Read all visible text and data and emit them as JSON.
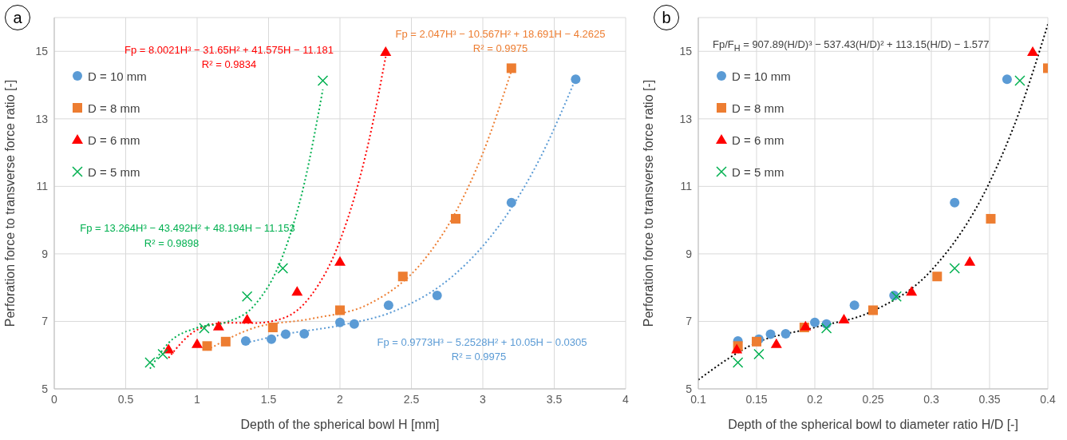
{
  "chart_data": [
    {
      "type": "scatter",
      "xlabel": "Depth of the spherical bowl H [mm]",
      "ylabel": "Perforation force to transverse force ratio [-]",
      "xlim": [
        0,
        4
      ],
      "xticks": [
        0,
        0.5,
        1,
        1.5,
        2,
        2.5,
        3,
        3.5,
        4
      ],
      "ylim": [
        5,
        16
      ],
      "yticks": [
        5,
        7,
        9,
        11,
        13,
        15
      ],
      "grid": true,
      "legend": "top left",
      "annotations": [
        "a",
        "Fp = 8.0021H³ − 31.65H² + 41.575H − 11.181",
        "R² = 0.9834",
        "Fp = 2.047H³ − 10.567H² + 18.691H − 4.2625",
        "R² = 0.9975",
        "Fp = 13.264H³ − 43.492H² + 48.194H − 11.153",
        "R² = 0.9898",
        "Fp = 0.9773H³ − 5.2528H² + 10.05H − 0.0305",
        "R² = 0.9975"
      ],
      "series": [
        {
          "name": "D = 10 mm",
          "type": "scatter",
          "marker": "circle",
          "color": "#5b9bd5",
          "x": [
            1.34,
            1.52,
            1.62,
            1.75,
            2.0,
            2.1,
            2.34,
            2.68,
            3.2,
            3.65
          ],
          "values": [
            6.42,
            6.47,
            6.62,
            6.63,
            6.97,
            6.92,
            7.48,
            7.77,
            10.52,
            14.17
          ]
        },
        {
          "name": "D = 8 mm",
          "type": "scatter",
          "marker": "square",
          "color": "#ed7d31",
          "x": [
            1.07,
            1.2,
            1.53,
            2.0,
            2.44,
            2.81,
            3.2
          ],
          "values": [
            6.27,
            6.4,
            6.82,
            7.33,
            8.33,
            10.04,
            14.5
          ]
        },
        {
          "name": "D = 6 mm",
          "type": "scatter",
          "marker": "triangle",
          "color": "#ff0000",
          "x": [
            0.8,
            1.0,
            1.15,
            1.35,
            1.7,
            2.0,
            2.32
          ],
          "values": [
            6.17,
            6.33,
            6.85,
            7.06,
            7.88,
            8.77,
            14.98
          ]
        },
        {
          "name": "D = 5 mm",
          "type": "scatter",
          "marker": "cross",
          "color": "#00b050",
          "x": [
            0.67,
            0.76,
            1.05,
            1.35,
            1.6,
            1.88
          ],
          "values": [
            5.78,
            6.03,
            6.8,
            7.74,
            8.57,
            14.13
          ]
        },
        {
          "type": "line",
          "line_style": "dotted",
          "color": "#ff0000",
          "x": [
            0.8,
            1.0,
            1.2,
            1.4,
            1.6,
            1.8,
            2.0,
            2.2,
            2.32
          ],
          "values": [
            5.92,
            6.75,
            6.96,
            6.95,
            7.09,
            7.78,
            9.39,
            12.3,
            14.84
          ]
        },
        {
          "type": "line",
          "line_style": "dotted",
          "color": "#ed7d31",
          "x": [
            1.07,
            1.4,
            1.8,
            2.2,
            2.6,
            2.8,
            3.0,
            3.2
          ],
          "values": [
            6.15,
            6.81,
            7.08,
            7.51,
            8.88,
            10.16,
            11.98,
            14.42
          ]
        },
        {
          "type": "line",
          "line_style": "dotted",
          "color": "#00b050",
          "x": [
            0.67,
            0.8,
            1.0,
            1.2,
            1.4,
            1.6,
            1.75,
            1.88
          ],
          "values": [
            5.6,
            6.36,
            6.81,
            6.97,
            7.47,
            8.95,
            11.08,
            13.87
          ]
        },
        {
          "type": "line",
          "line_style": "dotted",
          "color": "#5b9bd5",
          "x": [
            1.34,
            1.6,
            2.0,
            2.4,
            2.8,
            3.0,
            3.2,
            3.4,
            3.65
          ],
          "values": [
            6.36,
            6.61,
            6.88,
            7.34,
            8.38,
            9.23,
            10.36,
            11.83,
            14.19
          ]
        }
      ]
    },
    {
      "type": "scatter",
      "xlabel": "Depth of the spherical bowl to diameter ratio H/D [-]",
      "ylabel": "Perforation force to transverse force ratio [-]",
      "xlim": [
        0.1,
        0.4
      ],
      "xticks": [
        0.1,
        0.15,
        0.2,
        0.25,
        0.3,
        0.35,
        0.4
      ],
      "ylim": [
        5,
        16
      ],
      "yticks": [
        5,
        7,
        9,
        11,
        13,
        15
      ],
      "grid": true,
      "legend": "top left",
      "annotations": [
        "b",
        "Fp/F$_{H}$ = 907.89(H/D)³ − 537.43(H/D)² + 113.15(H/D) − 1.577"
      ],
      "series": [
        {
          "name": "D = 10 mm",
          "type": "scatter",
          "marker": "circle",
          "color": "#5b9bd5",
          "x": [
            0.134,
            0.152,
            0.162,
            0.175,
            0.2,
            0.21,
            0.234,
            0.268,
            0.32,
            0.365
          ],
          "values": [
            6.42,
            6.47,
            6.62,
            6.63,
            6.97,
            6.92,
            7.48,
            7.77,
            10.52,
            14.17
          ]
        },
        {
          "name": "D = 8 mm",
          "type": "scatter",
          "marker": "square",
          "color": "#ed7d31",
          "x": [
            0.134,
            0.15,
            0.191,
            0.25,
            0.305,
            0.351,
            0.4
          ],
          "values": [
            6.27,
            6.4,
            6.82,
            7.33,
            8.33,
            10.04,
            14.5
          ]
        },
        {
          "name": "D = 6 mm",
          "type": "scatter",
          "marker": "triangle",
          "color": "#ff0000",
          "x": [
            0.133,
            0.167,
            0.192,
            0.225,
            0.283,
            0.333,
            0.387
          ],
          "values": [
            6.17,
            6.33,
            6.85,
            7.06,
            7.88,
            8.77,
            14.98
          ]
        },
        {
          "name": "D = 5 mm",
          "type": "scatter",
          "marker": "cross",
          "color": "#00b050",
          "x": [
            0.134,
            0.152,
            0.21,
            0.27,
            0.32,
            0.376
          ],
          "values": [
            5.78,
            6.03,
            6.8,
            7.74,
            8.57,
            14.13
          ]
        },
        {
          "type": "line",
          "line_style": "dotted",
          "color": "#000000",
          "x": [
            0.1,
            0.15,
            0.2,
            0.25,
            0.3,
            0.35,
            0.375,
            0.4
          ],
          "values": [
            5.27,
            6.37,
            6.82,
            7.31,
            8.51,
            11.12,
            13.16,
            15.8
          ]
        }
      ]
    }
  ]
}
